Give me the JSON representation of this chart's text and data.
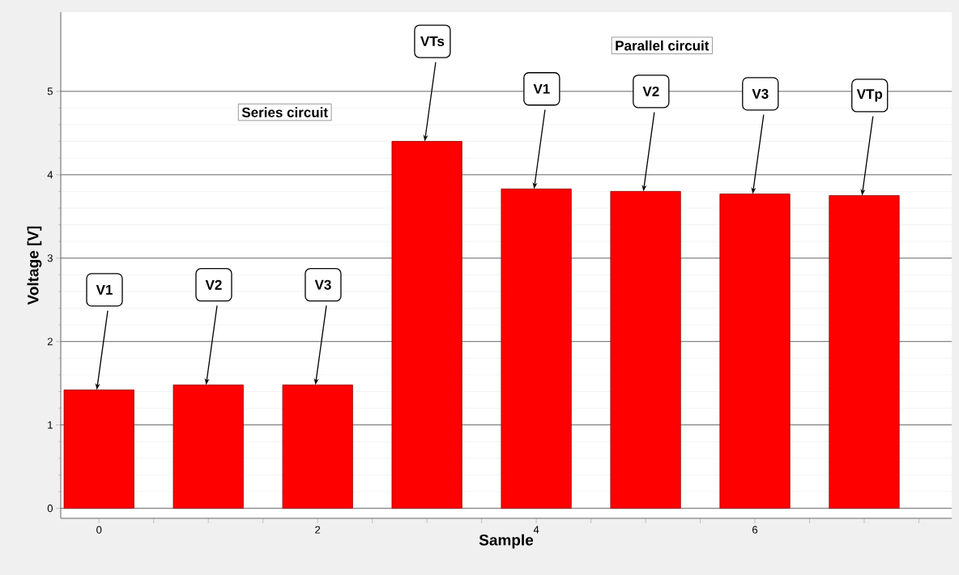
{
  "chart_data": {
    "type": "bar",
    "xlabel": "Sample",
    "ylabel": "Voltage [V]",
    "x": [
      0,
      1,
      2,
      3,
      4,
      5,
      6,
      7
    ],
    "values": [
      1.42,
      1.48,
      1.48,
      4.4,
      3.83,
      3.8,
      3.77,
      3.75
    ],
    "color": "#ff0000",
    "xlim": [
      -0.35,
      7.8
    ],
    "xticks": [
      0,
      {
        "value": 0.5,
        "label": null
      },
      {
        "value": 1,
        "label": null
      },
      {
        "value": 1.5,
        "label": null
      },
      2,
      {
        "value": 2.5,
        "label": null
      },
      {
        "value": 3,
        "label": null
      },
      {
        "value": 3.5,
        "label": null
      },
      4,
      {
        "value": 4.5,
        "label": null
      },
      {
        "value": 5,
        "label": null
      },
      {
        "value": 5.5,
        "label": null
      },
      6,
      {
        "value": 6.5,
        "label": null
      },
      {
        "value": 7,
        "label": null
      },
      {
        "value": 7.5,
        "label": null
      }
    ],
    "ylim": [
      -0.12,
      5.95
    ],
    "yticks": [
      0,
      1,
      2,
      3,
      4,
      5
    ],
    "grid": "y",
    "annotations": [
      "Series circuit",
      "Parallel circuit",
      {
        "text": "V1",
        "x": 0,
        "y": 1.42
      },
      {
        "text": "V2",
        "x": 1,
        "y": 1.48
      },
      {
        "text": "V3",
        "x": 2,
        "y": 1.48
      },
      {
        "text": "VTs",
        "x": 3,
        "y": 4.4
      },
      {
        "text": "V1",
        "x": 4,
        "y": 3.83
      },
      {
        "text": "V2",
        "x": 5,
        "y": 3.8
      },
      {
        "text": "V3",
        "x": 6,
        "y": 3.77
      },
      {
        "text": "VTp",
        "x": 7,
        "y": 3.75
      }
    ]
  }
}
